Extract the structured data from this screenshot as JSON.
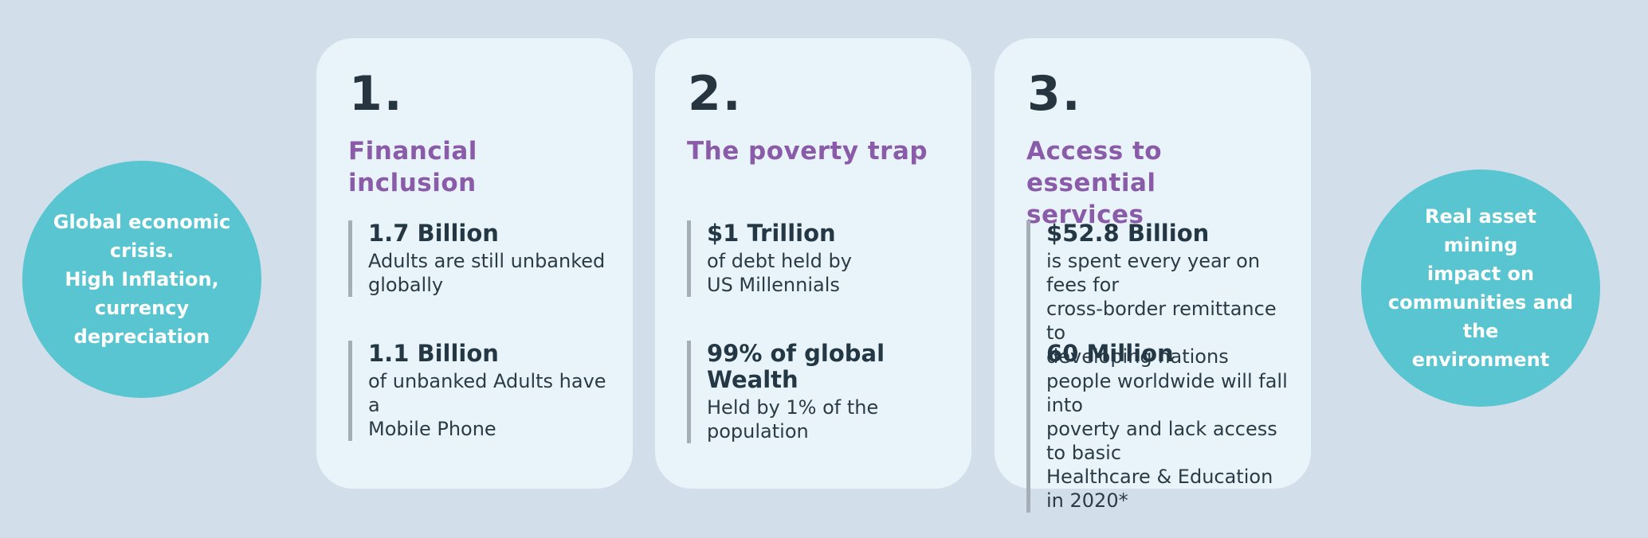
{
  "colors": {
    "background": "#d2dfea",
    "card_background": "#e9f4fa",
    "circle_background": "#58c5d0",
    "card_title_purple": "#8a5ba8",
    "dark_text": "#243744",
    "stat_bar_gray": "#a5aeb6",
    "circle_text": "#ffffff"
  },
  "left_circle": {
    "text": "Global economic\ncrisis.\nHigh Inflation,\ncurrency\ndepreciation"
  },
  "right_circle": {
    "text": "Real asset  mining\nimpact on\ncommunities and the\nenvironment"
  },
  "cards": [
    {
      "number": "1.",
      "title": "Financial inclusion",
      "stats": [
        {
          "value": "1.7 Billion",
          "desc": "Adults are still unbanked\nglobally"
        },
        {
          "value": "1.1 Billion",
          "desc": "of unbanked Adults have a\nMobile Phone"
        }
      ]
    },
    {
      "number": "2.",
      "title": "The poverty trap",
      "stats": [
        {
          "value": "$1 Trillion",
          "desc": "of debt held by\nUS Millennials"
        },
        {
          "value": "99% of global Wealth",
          "desc": "Held by 1% of the\npopulation"
        }
      ]
    },
    {
      "number": "3.",
      "title": "Access to essential\nservices",
      "stats": [
        {
          "value": "$52.8 Billion",
          "desc": "is spent every year on fees for\ncross-border remittance to\ndeveloping nations"
        },
        {
          "value": "60 Million",
          "desc": "people worldwide will fall into\npoverty and lack access to basic\nHealthcare & Education in 2020*"
        }
      ]
    }
  ]
}
